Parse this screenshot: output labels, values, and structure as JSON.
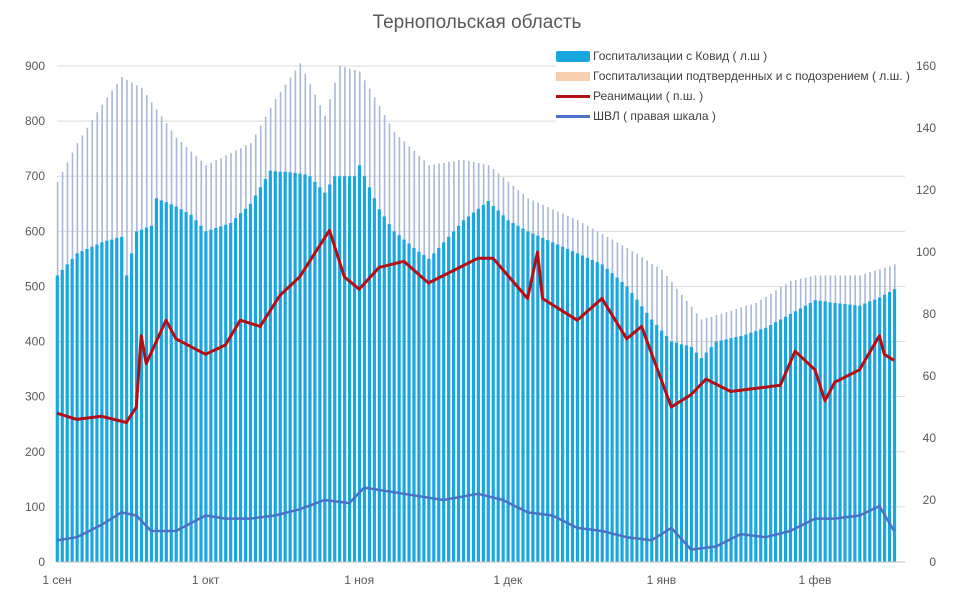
{
  "chart_data": {
    "type": "bar+line",
    "title": "Тернопольская область",
    "x_ticks": [
      "1 сен",
      "1 окт",
      "1 ноя",
      "1 дек",
      "1 янв",
      "1 фев"
    ],
    "y_left": {
      "range": [
        0,
        900
      ],
      "ticks": [
        0,
        100,
        200,
        300,
        400,
        500,
        600,
        700,
        800,
        900
      ]
    },
    "y_right": {
      "range": [
        0,
        160
      ],
      "ticks": [
        0,
        20,
        40,
        60,
        80,
        100,
        120,
        140,
        160
      ]
    },
    "grid": true,
    "legend_position": "top-right",
    "series": [
      {
        "name": "Госпитализации с Ковид ( л.ш )",
        "type": "bar",
        "axis": "left",
        "color": "#1aa7e0",
        "points": [
          [
            "09-01",
            520
          ],
          [
            "09-05",
            560
          ],
          [
            "09-10",
            580
          ],
          [
            "09-14",
            590
          ],
          [
            "09-15",
            520
          ],
          [
            "09-17",
            600
          ],
          [
            "09-20",
            610
          ],
          [
            "09-21",
            660
          ],
          [
            "09-25",
            645
          ],
          [
            "09-28",
            630
          ],
          [
            "10-01",
            600
          ],
          [
            "10-06",
            615
          ],
          [
            "10-10",
            650
          ],
          [
            "10-14",
            710
          ],
          [
            "10-20",
            705
          ],
          [
            "10-22",
            700
          ],
          [
            "10-25",
            670
          ],
          [
            "10-27",
            700
          ],
          [
            "10-31",
            700
          ],
          [
            "11-01",
            720
          ],
          [
            "11-05",
            640
          ],
          [
            "11-08",
            600
          ],
          [
            "11-12",
            570
          ],
          [
            "11-15",
            550
          ],
          [
            "11-18",
            580
          ],
          [
            "11-22",
            620
          ],
          [
            "11-27",
            655
          ],
          [
            "12-01",
            620
          ],
          [
            "12-05",
            600
          ],
          [
            "12-10",
            580
          ],
          [
            "12-15",
            560
          ],
          [
            "12-20",
            540
          ],
          [
            "12-25",
            500
          ],
          [
            "12-30",
            440
          ],
          [
            "01-03",
            400
          ],
          [
            "01-07",
            390
          ],
          [
            "01-09",
            370
          ],
          [
            "01-12",
            400
          ],
          [
            "01-17",
            410
          ],
          [
            "01-22",
            425
          ],
          [
            "01-27",
            450
          ],
          [
            "02-01",
            475
          ],
          [
            "02-05",
            470
          ],
          [
            "02-10",
            465
          ],
          [
            "02-14",
            480
          ],
          [
            "02-17",
            495
          ]
        ]
      },
      {
        "name": "Госпитализации подтверденных и с подозрением ( л.ш. )",
        "type": "bar",
        "axis": "left",
        "color": "#a9b8d8",
        "points": [
          [
            "09-01",
            690
          ],
          [
            "09-05",
            760
          ],
          [
            "09-10",
            830
          ],
          [
            "09-14",
            880
          ],
          [
            "09-18",
            860
          ],
          [
            "09-25",
            770
          ],
          [
            "10-01",
            720
          ],
          [
            "10-10",
            760
          ],
          [
            "10-15",
            840
          ],
          [
            "10-20",
            905
          ],
          [
            "10-25",
            810
          ],
          [
            "10-28",
            900
          ],
          [
            "11-01",
            890
          ],
          [
            "11-08",
            780
          ],
          [
            "11-15",
            720
          ],
          [
            "11-22",
            730
          ],
          [
            "11-27",
            720
          ],
          [
            "12-05",
            660
          ],
          [
            "12-15",
            620
          ],
          [
            "12-25",
            570
          ],
          [
            "01-01",
            530
          ],
          [
            "01-09",
            440
          ],
          [
            "01-20",
            470
          ],
          [
            "01-27",
            510
          ],
          [
            "02-01",
            520
          ],
          [
            "02-10",
            520
          ],
          [
            "02-17",
            540
          ]
        ]
      },
      {
        "name": "Реанимации ( п.ш. )",
        "type": "line",
        "axis": "right",
        "color": "#b30f14",
        "points": [
          [
            "09-01",
            48
          ],
          [
            "09-05",
            46
          ],
          [
            "09-10",
            47
          ],
          [
            "09-15",
            45
          ],
          [
            "09-17",
            50
          ],
          [
            "09-18",
            73
          ],
          [
            "09-19",
            64
          ],
          [
            "09-23",
            78
          ],
          [
            "09-25",
            72
          ],
          [
            "10-01",
            67
          ],
          [
            "10-05",
            70
          ],
          [
            "10-08",
            78
          ],
          [
            "10-12",
            76
          ],
          [
            "10-16",
            86
          ],
          [
            "10-20",
            92
          ],
          [
            "10-26",
            107
          ],
          [
            "10-29",
            92
          ],
          [
            "11-01",
            88
          ],
          [
            "11-05",
            95
          ],
          [
            "11-10",
            97
          ],
          [
            "11-15",
            90
          ],
          [
            "11-20",
            94
          ],
          [
            "11-25",
            98
          ],
          [
            "11-28",
            98
          ],
          [
            "12-05",
            85
          ],
          [
            "12-07",
            100
          ],
          [
            "12-08",
            85
          ],
          [
            "12-15",
            78
          ],
          [
            "12-20",
            85
          ],
          [
            "12-25",
            72
          ],
          [
            "12-28",
            76
          ],
          [
            "01-03",
            50
          ],
          [
            "01-07",
            54
          ],
          [
            "01-10",
            59
          ],
          [
            "01-15",
            55
          ],
          [
            "01-20",
            56
          ],
          [
            "01-25",
            57
          ],
          [
            "01-28",
            68
          ],
          [
            "02-01",
            62
          ],
          [
            "02-03",
            52
          ],
          [
            "02-05",
            58
          ],
          [
            "02-10",
            62
          ],
          [
            "02-14",
            73
          ],
          [
            "02-15",
            67
          ],
          [
            "02-17",
            65
          ]
        ]
      },
      {
        "name": "ШВЛ ( правая шкала )",
        "type": "line",
        "axis": "right",
        "color": "#4a72c4",
        "points": [
          [
            "09-01",
            7
          ],
          [
            "09-05",
            8
          ],
          [
            "09-10",
            12
          ],
          [
            "09-14",
            16
          ],
          [
            "09-17",
            15
          ],
          [
            "09-20",
            10
          ],
          [
            "09-25",
            10
          ],
          [
            "10-01",
            15
          ],
          [
            "10-05",
            14
          ],
          [
            "10-10",
            14
          ],
          [
            "10-15",
            15
          ],
          [
            "10-20",
            17
          ],
          [
            "10-25",
            20
          ],
          [
            "10-30",
            19
          ],
          [
            "11-02",
            24
          ],
          [
            "11-10",
            22
          ],
          [
            "11-18",
            20
          ],
          [
            "11-25",
            22
          ],
          [
            "11-30",
            20
          ],
          [
            "12-05",
            16
          ],
          [
            "12-10",
            15
          ],
          [
            "12-15",
            11
          ],
          [
            "12-20",
            10
          ],
          [
            "12-25",
            8
          ],
          [
            "12-30",
            7
          ],
          [
            "01-03",
            11
          ],
          [
            "01-07",
            4
          ],
          [
            "01-12",
            5
          ],
          [
            "01-17",
            9
          ],
          [
            "01-22",
            8
          ],
          [
            "01-27",
            10
          ],
          [
            "02-01",
            14
          ],
          [
            "02-05",
            14
          ],
          [
            "02-10",
            15
          ],
          [
            "02-14",
            18
          ],
          [
            "02-17",
            10
          ]
        ]
      }
    ]
  }
}
